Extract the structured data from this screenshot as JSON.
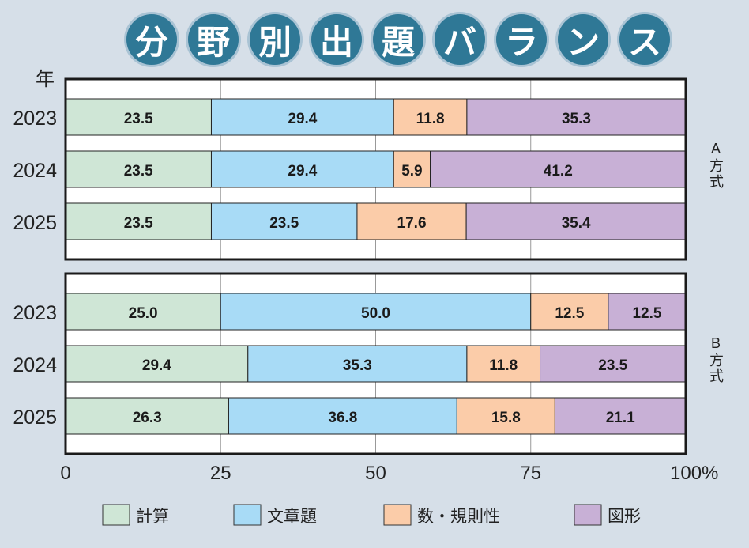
{
  "chart_data": {
    "type": "bar",
    "stacked": true,
    "orientation": "horizontal",
    "title": "分野別出題バランス",
    "ylabel": "年",
    "xlim": [
      0,
      100
    ],
    "xticks": [
      "0",
      "25",
      "50",
      "75",
      "100%"
    ],
    "grid": true,
    "legend_position": "bottom",
    "series_names": [
      "計算",
      "文章題",
      "数・規則性",
      "図形"
    ],
    "colors": [
      "#cfe6d6",
      "#a8dbf6",
      "#fbcca9",
      "#c8b0d6"
    ],
    "panels": [
      {
        "label": "A方式",
        "categories": [
          "2023",
          "2024",
          "2025"
        ],
        "values": [
          [
            23.5,
            29.4,
            11.8,
            35.3
          ],
          [
            23.5,
            29.4,
            5.9,
            41.2
          ],
          [
            23.5,
            23.5,
            17.6,
            35.4
          ]
        ]
      },
      {
        "label": "B方式",
        "categories": [
          "2023",
          "2024",
          "2025"
        ],
        "values": [
          [
            25.0,
            50.0,
            12.5,
            12.5
          ],
          [
            29.4,
            35.3,
            11.8,
            23.5
          ],
          [
            26.3,
            36.8,
            15.8,
            21.1
          ]
        ]
      }
    ]
  }
}
